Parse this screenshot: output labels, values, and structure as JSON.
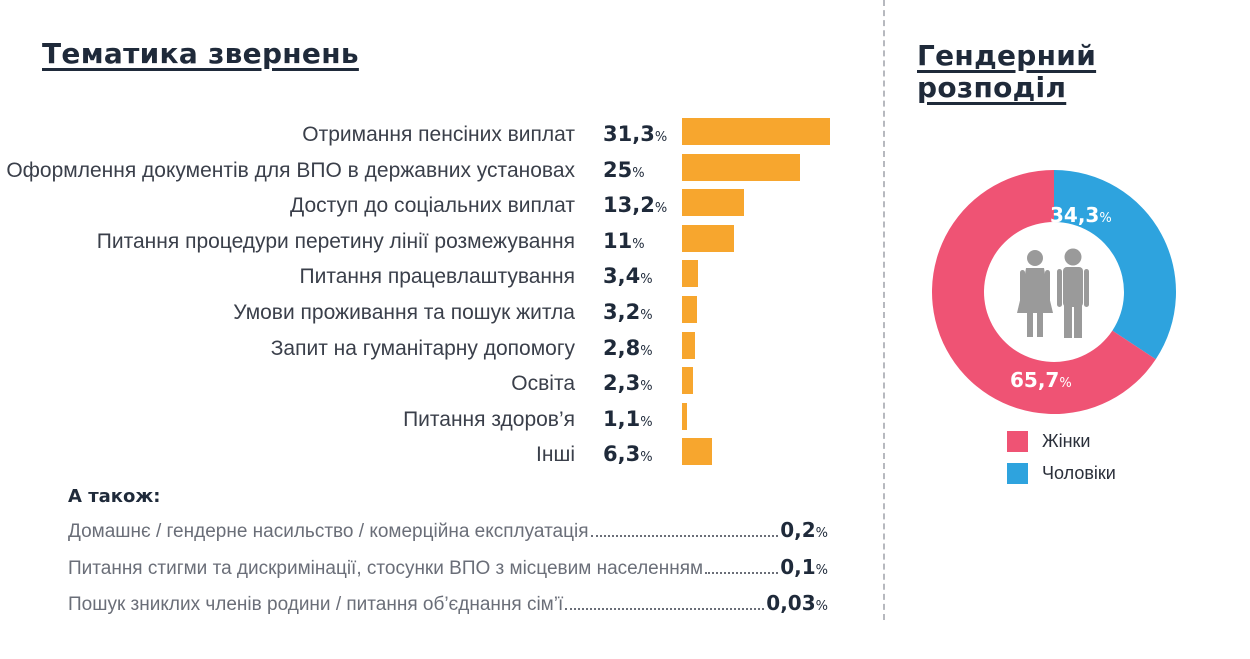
{
  "left_title": "Тематика звернень",
  "right_title_line1": "Гендерний",
  "right_title_line2": "розподіл",
  "colors": {
    "bar": "#f7a62e",
    "women": "#ef5374",
    "men": "#2ea3de",
    "figure": "#9a9a9a"
  },
  "chart_data": [
    {
      "type": "bar",
      "orientation": "horizontal",
      "categories": [
        "Отримання пенсіних виплат",
        "Оформлення документів для ВПО в державних установах",
        "Доступ до соціальних виплат",
        "Питання процедури перетину лінії розмежування",
        "Питання працевлаштування",
        "Умови проживання та пошук житла",
        "Запит на гуманітарну допомогу",
        "Освіта",
        "Питання здоров’я",
        "Інші"
      ],
      "values": [
        31.3,
        25,
        13.2,
        11,
        3.4,
        3.2,
        2.8,
        2.3,
        1.1,
        6.3
      ],
      "value_labels": [
        "31,3",
        "25",
        "13,2",
        "11",
        "3,4",
        "3,2",
        "2,8",
        "2,3",
        "1,1",
        "6,3"
      ],
      "unit": "%"
    },
    {
      "type": "pie",
      "style": "donut",
      "slices": [
        {
          "name": "Жінки",
          "value": 65.7,
          "label": "65,7",
          "color": "#ef5374"
        },
        {
          "name": "Чоловіки",
          "value": 34.3,
          "label": "34,3",
          "color": "#2ea3de"
        }
      ],
      "unit": "%",
      "center_icon": "man-woman-icon"
    }
  ],
  "also": {
    "title": "А також:",
    "items": [
      {
        "text": "Домашнє / гендерне насильство / комерційна експлуатація",
        "value": "0,2"
      },
      {
        "text": "Питання стигми та дискримінації, стосунки ВПО з місцевим населенням",
        "value": "0,1"
      },
      {
        "text": "Пошук зниклих членів родини / питання об’єднання сім’ї",
        "value": "0,03"
      }
    ],
    "unit": "%"
  },
  "legend": [
    {
      "label": "Жінки",
      "color": "#ef5374"
    },
    {
      "label": "Чоловіки",
      "color": "#2ea3de"
    }
  ]
}
